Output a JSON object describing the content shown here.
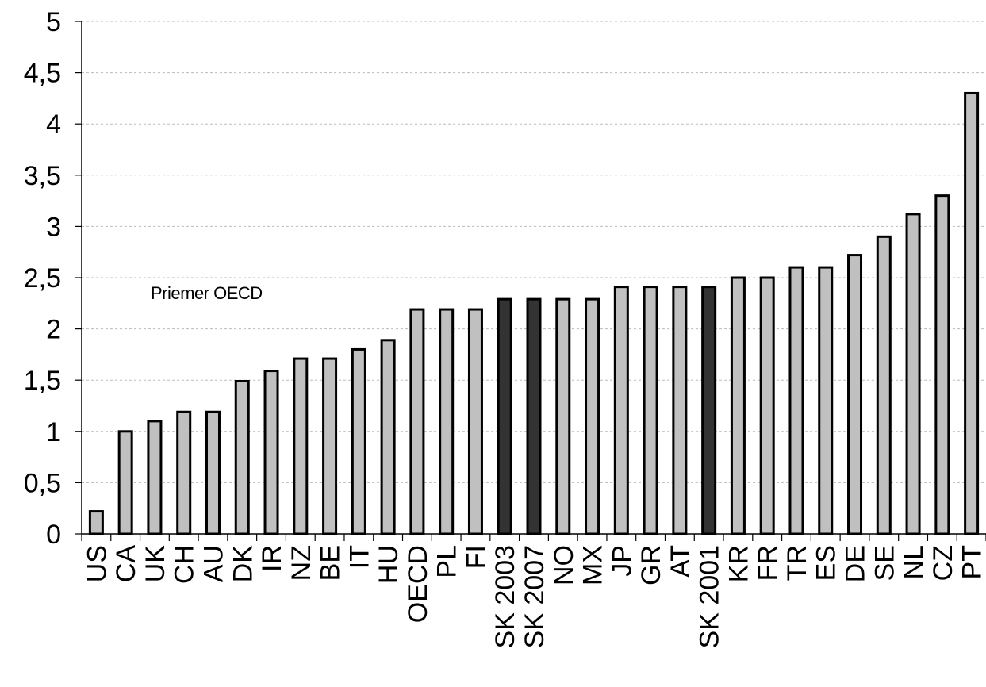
{
  "chart_data": {
    "type": "bar",
    "title": "",
    "xlabel": "",
    "ylabel": "",
    "ylim": [
      0,
      5
    ],
    "yticks": [
      "0",
      "0,5",
      "1",
      "1,5",
      "2",
      "2,5",
      "3",
      "3,5",
      "4",
      "4,5",
      "5"
    ],
    "grid": true,
    "categories": [
      "US",
      "CA",
      "UK",
      "CH",
      "AU",
      "DK",
      "IR",
      "NZ",
      "BE",
      "IT",
      "HU",
      "OECD",
      "PL",
      "FI",
      "SK 2003",
      "SK 2007",
      "NO",
      "MX",
      "JP",
      "GR",
      "AT",
      "SK 2001",
      "KR",
      "FR",
      "TR",
      "ES",
      "DE",
      "SE",
      "NL",
      "CZ",
      "PT"
    ],
    "values": [
      0.22,
      1.0,
      1.1,
      1.19,
      1.19,
      1.49,
      1.59,
      1.71,
      1.71,
      1.8,
      1.89,
      2.19,
      2.19,
      2.19,
      2.29,
      2.29,
      2.29,
      2.29,
      2.41,
      2.41,
      2.41,
      2.41,
      2.5,
      2.5,
      2.6,
      2.6,
      2.72,
      2.9,
      3.12,
      3.3,
      4.3
    ],
    "highlighted": [
      "SK 2003",
      "SK 2007",
      "SK 2001"
    ],
    "annotation": "Priemer OECD",
    "colors": {
      "bar": "#c0c0c0",
      "highlight": "#333333",
      "outline": "#000000",
      "grid": "#bbbbbb"
    }
  }
}
